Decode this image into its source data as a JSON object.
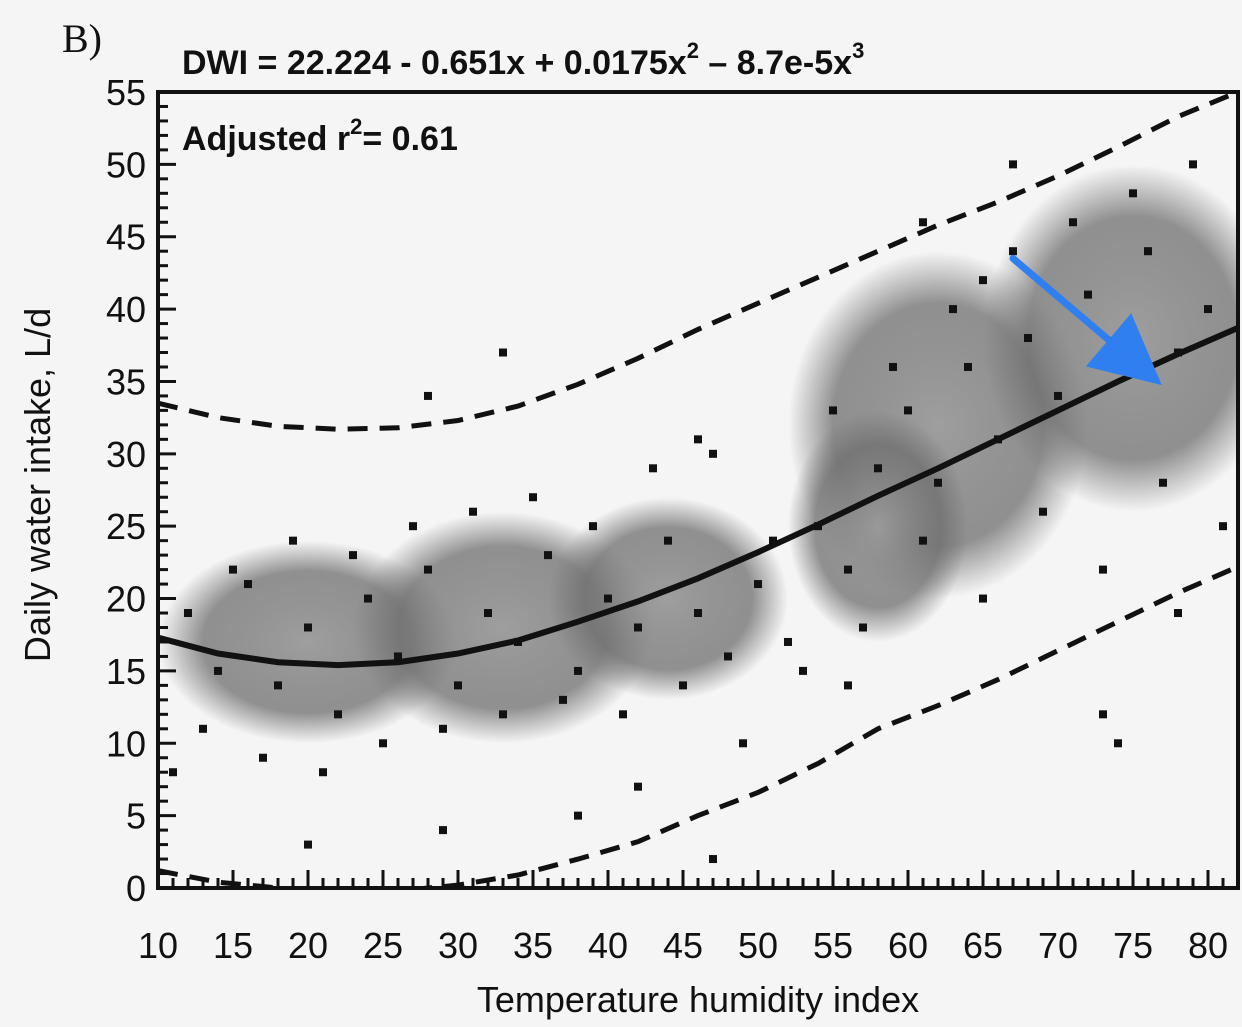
{
  "chart_data": {
    "type": "scatter",
    "panel_label": "B)",
    "equation": {
      "prefix": "DWI = 22.224 - 0.651x + 0.0175x",
      "exp1": "2",
      "middle": " – 8.7e-5x",
      "exp2": "3"
    },
    "adjusted_r2": {
      "prefix": "Adjusted r",
      "exp": "2",
      "suffix": "= 0.61"
    },
    "xlabel": "Temperature humidity index",
    "ylabel": "Daily water intake, L/d",
    "xlim": [
      10,
      82
    ],
    "ylim": [
      0,
      55
    ],
    "xticks": [
      "10",
      "15",
      "20",
      "25",
      "30",
      "35",
      "40",
      "45",
      "50",
      "55",
      "60",
      "65",
      "70",
      "75",
      "80"
    ],
    "yticks": [
      "0",
      "5",
      "10",
      "15",
      "20",
      "25",
      "30",
      "35",
      "40",
      "45",
      "50",
      "55"
    ],
    "fit": {
      "name": "DWI",
      "coefficients": [
        22.224,
        -0.651,
        0.0175,
        -8.7e-05
      ],
      "x": [
        10,
        14,
        18,
        22,
        26,
        30,
        34,
        38,
        42,
        46,
        50,
        54,
        58,
        62,
        66,
        70,
        74,
        78,
        82
      ],
      "y": [
        17.3,
        16.2,
        15.6,
        15.4,
        15.6,
        16.2,
        17.1,
        18.4,
        19.8,
        21.4,
        23.2,
        25.1,
        27.1,
        29.0,
        31.0,
        33.0,
        35.0,
        36.9,
        38.7
      ]
    },
    "upper_band": {
      "x": [
        10,
        14,
        18,
        22,
        26,
        30,
        34,
        38,
        42,
        46,
        50,
        54,
        58,
        62,
        66,
        70,
        74,
        78,
        82
      ],
      "y": [
        33.5,
        32.5,
        31.9,
        31.7,
        31.8,
        32.3,
        33.3,
        34.8,
        36.6,
        38.6,
        40.4,
        42.2,
        44.0,
        45.8,
        47.4,
        49.2,
        51.2,
        53.3,
        55.0
      ]
    },
    "lower_band": {
      "x": [
        10,
        14,
        18,
        22,
        26,
        30,
        34,
        38,
        42,
        46,
        50,
        54,
        58,
        62,
        66,
        70,
        74,
        78,
        82
      ],
      "y": [
        1.2,
        0.4,
        0.0,
        -0.3,
        -0.2,
        0.2,
        0.9,
        2.0,
        3.2,
        5.0,
        6.6,
        8.6,
        11.0,
        12.6,
        14.4,
        16.4,
        18.4,
        20.4,
        22.2
      ]
    },
    "scatter_points": {
      "x": [
        12,
        14,
        16,
        18,
        20,
        22,
        24,
        26,
        28,
        30,
        32,
        34,
        36,
        38,
        40,
        42,
        44,
        46,
        48,
        50,
        52,
        54,
        56,
        58,
        60,
        62,
        64,
        66,
        68,
        70,
        72,
        74,
        76,
        78,
        80,
        13,
        17,
        21,
        25,
        29,
        33,
        37,
        41,
        45,
        49,
        53,
        57,
        61,
        65,
        69,
        73,
        77,
        81,
        15,
        19,
        23,
        27,
        31,
        35,
        39,
        43,
        47,
        51,
        55,
        59,
        63,
        67,
        71,
        75,
        79,
        11,
        20,
        29,
        38,
        47,
        56,
        65,
        74,
        28,
        33,
        42,
        46,
        61,
        67,
        73,
        78
      ],
      "y": [
        19,
        15,
        21,
        14,
        18,
        12,
        20,
        16,
        22,
        14,
        19,
        17,
        23,
        15,
        20,
        18,
        24,
        19,
        16,
        21,
        17,
        25,
        22,
        29,
        33,
        28,
        36,
        31,
        38,
        34,
        41,
        36,
        44,
        37,
        40,
        11,
        9,
        8,
        10,
        11,
        12,
        13,
        12,
        14,
        10,
        15,
        18,
        24,
        20,
        26,
        22,
        28,
        25,
        22,
        24,
        23,
        25,
        26,
        27,
        25,
        29,
        30,
        24,
        33,
        36,
        40,
        44,
        46,
        48,
        50,
        8,
        3,
        4,
        5,
        2,
        14,
        42,
        10,
        34,
        37,
        7,
        31,
        46,
        50,
        12,
        19
      ]
    },
    "annotation": {
      "type": "arrow",
      "color": "#2f7ff0",
      "from": [
        67,
        43.5
      ],
      "to": [
        75.5,
        36
      ]
    },
    "grid": false,
    "colors": {
      "marks": "#111111",
      "density": "#777777",
      "arrow": "#2f7ff0",
      "background": "#f5f5f5"
    }
  }
}
